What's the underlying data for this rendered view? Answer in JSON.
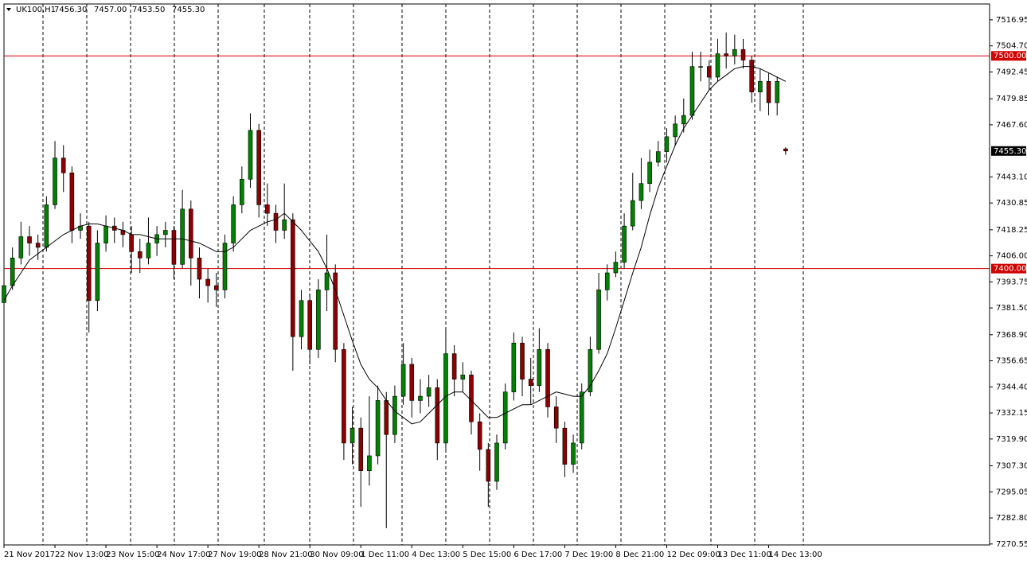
{
  "chart_data": {
    "type": "candlestick",
    "symbol": "UK100,H1",
    "header_prices": [
      "7456.30",
      "7457.00",
      "7453.50",
      "7455.30"
    ],
    "xlim": [
      0,
      116
    ],
    "xticks": [
      {
        "value": 0,
        "label": "21 Nov 2017"
      },
      {
        "value": 6,
        "label": "22 Nov 13:00"
      },
      {
        "value": 12,
        "label": "23 Nov 15:00"
      },
      {
        "value": 18,
        "label": "24 Nov 17:00"
      },
      {
        "value": 24,
        "label": "27 Nov 19:00"
      },
      {
        "value": 30,
        "label": "28 Nov 21:00"
      },
      {
        "value": 36,
        "label": "30 Nov 09:00"
      },
      {
        "value": 42,
        "label": "1 Dec 11:00"
      },
      {
        "value": 48,
        "label": "4 Dec 13:00"
      },
      {
        "value": 54,
        "label": "5 Dec 15:00"
      },
      {
        "value": 60,
        "label": "6 Dec 17:00"
      },
      {
        "value": 66,
        "label": "7 Dec 19:00"
      },
      {
        "value": 72,
        "label": "8 Dec 21:00"
      },
      {
        "value": 78,
        "label": "12 Dec 09:00"
      },
      {
        "value": 84,
        "label": "13 Dec 11:00"
      },
      {
        "value": 90,
        "label": "14 Dec 13:00"
      }
    ],
    "ylim": [
      7270.1,
      7524.4
    ],
    "yticks": [
      7516.95,
      {
        "value": 7504.7,
        "label": "7504.70"
      },
      7492.45,
      7479.85,
      {
        "value": 7467.6,
        "label": "7467.60"
      },
      {
        "value": 7443.1,
        "label": "7443.10"
      },
      7430.85,
      7418.25,
      {
        "value": 7406,
        "label": "7406.00"
      },
      7393.75,
      {
        "value": 7381.5,
        "label": "7381.50"
      },
      {
        "value": 7368.9,
        "label": "7368.90"
      },
      7356.65,
      {
        "value": 7344.4,
        "label": "7344.40"
      },
      7332.15,
      {
        "value": 7319.9,
        "label": "7319.90"
      },
      {
        "value": 7307.3,
        "label": "7307.30"
      },
      7295.05,
      {
        "value": 7282.8,
        "label": "7282.80"
      },
      7270.55
    ],
    "levels": [
      {
        "value": 7500,
        "label": "7500.00"
      },
      {
        "value": 7400,
        "label": "7400.00"
      }
    ],
    "level_color": "#d00000",
    "current_price": {
      "value": 7455.3,
      "label": "7455.30"
    },
    "up_color": "#008000",
    "down_color": "#8b0000",
    "ma_color": "#000000",
    "open": [
      7384,
      7392,
      7405,
      7415,
      7412,
      7410,
      7430,
      7452,
      7445,
      7418,
      7420,
      7385,
      7412,
      7420,
      7418,
      7416,
      7408,
      7405,
      7412,
      7416,
      7418,
      7402,
      7428,
      7405,
      7395,
      7392,
      7390,
      7412,
      7430,
      7442,
      7465,
      7430,
      7426,
      7418,
      7423,
      7368,
      7385,
      7362,
      7390,
      7398,
      7362,
      7318,
      7325,
      7305,
      7312,
      7338,
      7322,
      7340,
      7355,
      7338,
      7340,
      7344,
      7318,
      7360,
      7348,
      7350,
      7328,
      7315,
      7300,
      7318,
      7342,
      7365,
      7348,
      7345,
      7362,
      7335,
      7325,
      7308,
      7318,
      7342,
      7362,
      7390,
      7398,
      7403,
      7420,
      7432,
      7440,
      7450,
      7455,
      7462,
      7468,
      7472,
      7495,
      7495,
      7490,
      7501,
      7500,
      7503,
      7498,
      7483,
      7488,
      7478,
      7456.3
    ],
    "high": [
      7396,
      7410,
      7422,
      7420,
      7416,
      7434,
      7460,
      7458,
      7448,
      7426,
      7422,
      7418,
      7425,
      7424,
      7422,
      7420,
      7414,
      7424,
      7420,
      7422,
      7420,
      7437,
      7432,
      7410,
      7400,
      7398,
      7416,
      7434,
      7448,
      7473,
      7468,
      7440,
      7430,
      7440,
      7426,
      7390,
      7388,
      7395,
      7416,
      7402,
      7365,
      7335,
      7330,
      7340,
      7345,
      7342,
      7345,
      7365,
      7358,
      7348,
      7350,
      7348,
      7372,
      7364,
      7356,
      7352,
      7332,
      7318,
      7322,
      7346,
      7370,
      7368,
      7358,
      7372,
      7365,
      7340,
      7328,
      7322,
      7346,
      7368,
      7398,
      7402,
      7408,
      7426,
      7445,
      7452,
      7456,
      7460,
      7466,
      7472,
      7480,
      7502,
      7502,
      7498,
      7508,
      7511,
      7510,
      7508,
      7500,
      7494,
      7492,
      7490,
      7457
    ],
    "low": [
      7378,
      7390,
      7402,
      7406,
      7404,
      7408,
      7428,
      7436,
      7412,
      7414,
      7370,
      7380,
      7408,
      7412,
      7410,
      7398,
      7398,
      7402,
      7406,
      7410,
      7395,
      7400,
      7392,
      7386,
      7384,
      7382,
      7386,
      7408,
      7426,
      7438,
      7424,
      7420,
      7412,
      7414,
      7352,
      7362,
      7355,
      7358,
      7380,
      7356,
      7310,
      7308,
      7288,
      7298,
      7308,
      7278,
      7318,
      7336,
      7330,
      7332,
      7335,
      7310,
      7315,
      7340,
      7342,
      7322,
      7305,
      7288,
      7296,
      7315,
      7338,
      7340,
      7336,
      7342,
      7330,
      7318,
      7302,
      7304,
      7315,
      7340,
      7360,
      7385,
      7396,
      7400,
      7418,
      7428,
      7436,
      7448,
      7450,
      7458,
      7464,
      7470,
      7488,
      7484,
      7488,
      7494,
      7496,
      7494,
      7478,
      7474,
      7472,
      7472,
      7453.5
    ],
    "close": [
      7392,
      7405,
      7415,
      7412,
      7410,
      7430,
      7452,
      7445,
      7418,
      7420,
      7385,
      7412,
      7420,
      7418,
      7416,
      7408,
      7405,
      7412,
      7416,
      7418,
      7402,
      7428,
      7405,
      7395,
      7392,
      7390,
      7412,
      7430,
      7442,
      7465,
      7430,
      7426,
      7418,
      7423,
      7368,
      7385,
      7362,
      7390,
      7398,
      7362,
      7318,
      7325,
      7305,
      7312,
      7338,
      7322,
      7340,
      7355,
      7338,
      7340,
      7344,
      7318,
      7360,
      7348,
      7350,
      7328,
      7315,
      7300,
      7318,
      7342,
      7365,
      7348,
      7345,
      7362,
      7335,
      7325,
      7308,
      7318,
      7342,
      7362,
      7390,
      7398,
      7403,
      7420,
      7432,
      7440,
      7450,
      7455,
      7462,
      7468,
      7472,
      7495,
      7495,
      7490,
      7501,
      7500,
      7503,
      7498,
      7483,
      7488,
      7478,
      7488,
      7455.3
    ],
    "ma_values": [
      7385,
      7392,
      7398,
      7404,
      7407,
      7410,
      7413,
      7416,
      7418,
      7420,
      7421,
      7421,
      7420,
      7419,
      7418,
      7416,
      7416,
      7415,
      7414,
      7414,
      7414,
      7414,
      7413,
      7412,
      7410,
      7408,
      7408,
      7410,
      7414,
      7418,
      7420,
      7422,
      7423,
      7426,
      7422,
      7418,
      7413,
      7408,
      7400,
      7390,
      7378,
      7366,
      7355,
      7348,
      7344,
      7338,
      7333,
      7330,
      7327,
      7328,
      7332,
      7336,
      7340,
      7342,
      7342,
      7338,
      7334,
      7330,
      7330,
      7332,
      7334,
      7336,
      7336,
      7338,
      7340,
      7342,
      7341,
      7340,
      7340,
      7345,
      7352,
      7360,
      7372,
      7385,
      7398,
      7410,
      7425,
      7438,
      7448,
      7458,
      7466,
      7472,
      7478,
      7484,
      7488,
      7491,
      7494,
      7495,
      7495,
      7494,
      7492,
      7490,
      7488
    ]
  }
}
